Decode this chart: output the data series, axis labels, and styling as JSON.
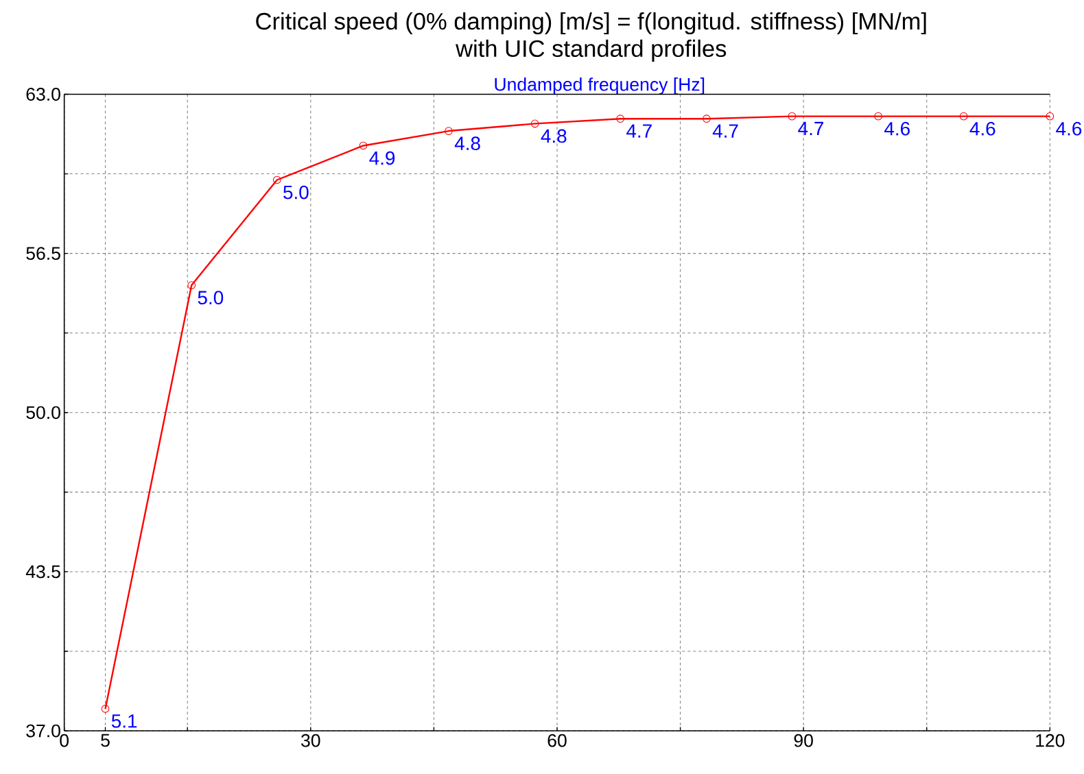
{
  "chart_data": {
    "type": "line",
    "title": "Critical speed (0% damping) [m/s] = f(longitud. stiffness) [MN/m]",
    "subtitle": "with UIC standard profiles",
    "annotations": [
      "Undamped frequency [Hz]",
      {
        "text": "5.1",
        "x": 5,
        "y": 37.9
      },
      {
        "text": "5.0",
        "x": 15.5,
        "y": 55.2
      },
      {
        "text": "5.0",
        "x": 25.9,
        "y": 59.5
      },
      {
        "text": "4.9",
        "x": 36.4,
        "y": 60.9
      },
      {
        "text": "4.8",
        "x": 46.8,
        "y": 61.5
      },
      {
        "text": "4.8",
        "x": 57.3,
        "y": 61.8
      },
      {
        "text": "4.7",
        "x": 67.7,
        "y": 62.0
      },
      {
        "text": "4.7",
        "x": 78.2,
        "y": 62.0
      },
      {
        "text": "4.7",
        "x": 88.6,
        "y": 62.1
      },
      {
        "text": "4.6",
        "x": 99.1,
        "y": 62.1
      },
      {
        "text": "4.6",
        "x": 109.5,
        "y": 62.1
      },
      {
        "text": "4.6",
        "x": 120,
        "y": 62.1
      }
    ],
    "x": [
      5,
      15.5,
      25.9,
      36.4,
      46.8,
      57.3,
      67.7,
      78.2,
      88.6,
      99.1,
      109.5,
      120
    ],
    "series": [
      {
        "color": "#ff0000",
        "values": [
          37.9,
          55.2,
          59.5,
          60.9,
          61.5,
          61.8,
          62.0,
          62.0,
          62.1,
          62.1,
          62.1,
          62.1
        ]
      }
    ],
    "xlim": [
      0,
      120
    ],
    "ylim": [
      37,
      63
    ],
    "xticks": [
      0,
      5,
      {
        "value": 15,
        "label": null
      },
      30,
      {
        "value": 45,
        "label": null
      },
      60,
      {
        "value": 75,
        "label": null
      },
      90,
      {
        "value": 105,
        "label": null
      },
      120
    ],
    "yticks": [
      {
        "value": 37,
        "label": "37.0"
      },
      {
        "value": 40.25,
        "label": null
      },
      {
        "value": 43.5,
        "label": "43.5"
      },
      {
        "value": 46.75,
        "label": null
      },
      {
        "value": 50,
        "label": "50.0"
      },
      {
        "value": 53.25,
        "label": null
      },
      {
        "value": 56.5,
        "label": "56.5"
      },
      {
        "value": 59.75,
        "label": null
      },
      {
        "value": 63,
        "label": "63.0"
      }
    ],
    "grid": true,
    "marker": "circle",
    "line_style": "solid"
  }
}
